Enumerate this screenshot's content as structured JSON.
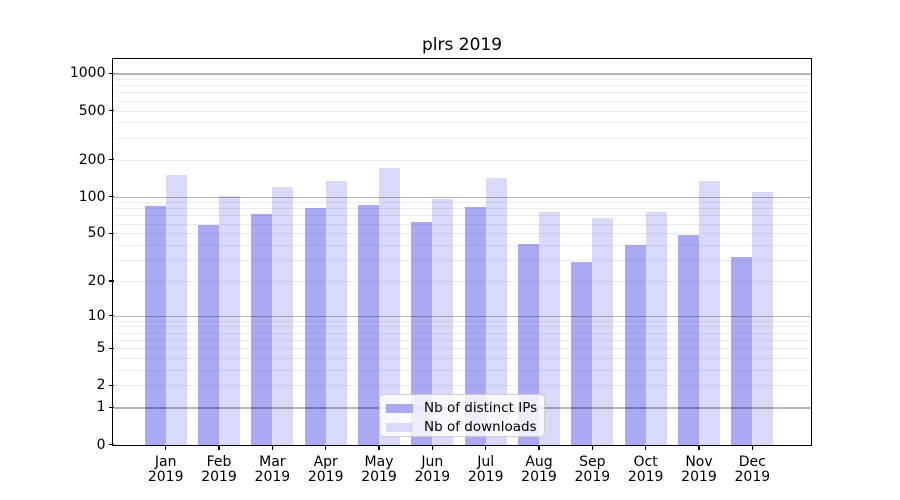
{
  "figure": {
    "title": "plrs 2019"
  },
  "chart_data": {
    "type": "bar",
    "title": "plrs 2019",
    "categories": [
      "Jan",
      "Feb",
      "Mar",
      "Apr",
      "May",
      "Jun",
      "Jul",
      "Aug",
      "Sep",
      "Oct",
      "Nov",
      "Dec"
    ],
    "x_tick_second_line": "2019",
    "series": [
      {
        "name": "Nb of distinct IPs",
        "color": "#a9a9f4",
        "values": [
          84,
          58,
          72,
          80,
          86,
          62,
          82,
          41,
          29,
          40,
          48,
          32
        ]
      },
      {
        "name": "Nb of downloads",
        "color": "#d9d9f9",
        "values": [
          151,
          101,
          119,
          134,
          171,
          95,
          142,
          75,
          67,
          75,
          133,
          110
        ]
      }
    ],
    "xlabel": "",
    "ylabel": "",
    "yscale": "log1p",
    "ylim": [
      0,
      1270
    ],
    "yticks": [
      0,
      1,
      2,
      5,
      10,
      20,
      50,
      100,
      200,
      500,
      1000
    ],
    "grid": {
      "major_lines_at": [
        1,
        10,
        100,
        1000
      ],
      "minor_mantissas": [
        2,
        3,
        4,
        5,
        6,
        7,
        8,
        9
      ],
      "minor_decades": [
        1,
        10,
        100
      ]
    },
    "legend": {
      "position": "lower center-left inside plot",
      "entries": [
        "Nb of distinct IPs",
        "Nb of downloads"
      ]
    }
  }
}
